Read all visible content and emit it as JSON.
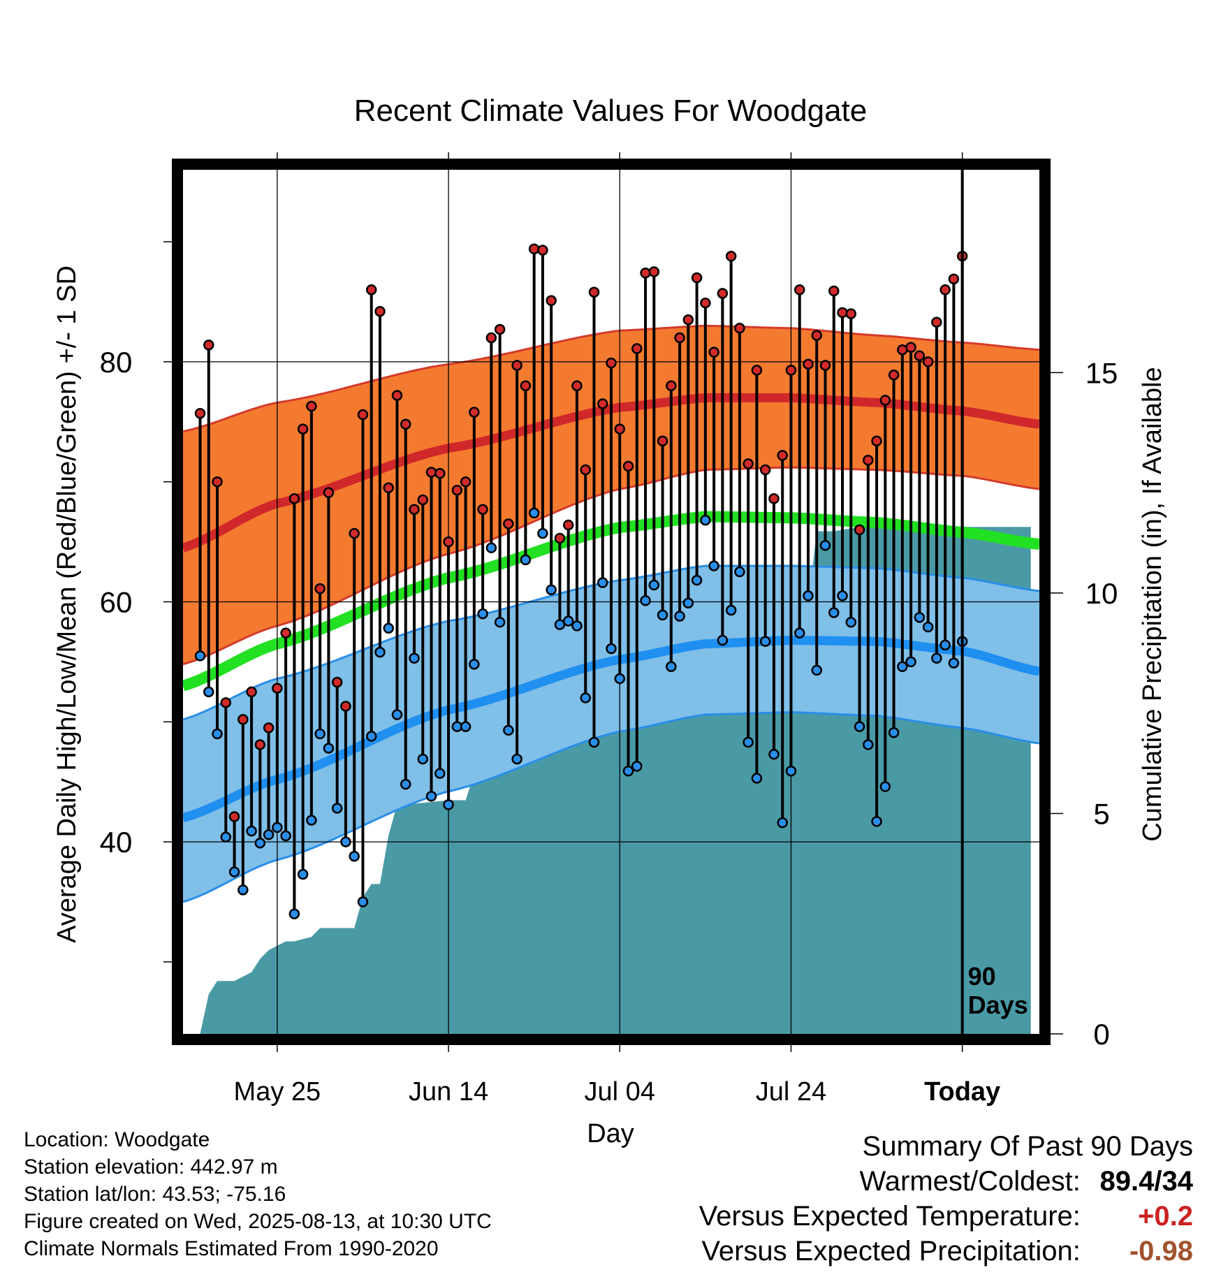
{
  "chart_data": {
    "type": "line",
    "title": "Recent Climate Values For Woodgate",
    "xlabel": "Day",
    "ylabel": "Average Daily High/Low/Mean (Red/Blue/Green) +/- 1 SD",
    "y2label": "Cumulative Precipitation (in), If Available",
    "x_ticks": [
      "May 25",
      "Jun 14",
      "Jul 04",
      "Jul 24",
      "Today"
    ],
    "x_tick_days": [
      25,
      45,
      65,
      85,
      105
    ],
    "xlim": [
      14,
      114
    ],
    "ylim": [
      24,
      96
    ],
    "y_ticks": [
      40,
      60,
      80
    ],
    "y_minor_ticks": [
      30,
      50,
      70,
      90
    ],
    "y2lim": [
      0,
      19.6
    ],
    "y2_ticks": [
      0,
      5,
      10,
      15
    ],
    "today_marker": "90\nDays",
    "grid": true,
    "colors": {
      "high_band": "#f47a30",
      "high_line": "#d0282a",
      "high_edge": "#d43a2a",
      "low_band": "#7fbfe8",
      "low_line": "#1f8ff0",
      "low_edge": "#2a8ee8",
      "mean_line": "#22e022",
      "precip": "#4a9aa5",
      "high_dot": "#d22a2a",
      "low_dot": "#2a8ee8"
    },
    "normals": {
      "days": [
        14,
        25,
        45,
        65,
        75,
        85,
        95,
        105,
        114
      ],
      "high_mean": [
        64.5,
        68.2,
        72.8,
        76.2,
        77.0,
        77.0,
        76.6,
        75.9,
        74.8
      ],
      "high_upper": [
        74.2,
        76.6,
        79.8,
        82.6,
        83.0,
        82.8,
        82.2,
        81.6,
        81.0
      ],
      "high_lower": [
        54.8,
        58.0,
        64.0,
        69.4,
        71.0,
        71.2,
        71.0,
        70.5,
        69.4
      ],
      "mean": [
        53.0,
        56.5,
        62.0,
        66.2,
        67.1,
        67.0,
        66.6,
        65.8,
        64.8
      ],
      "low_mean": [
        42.0,
        45.2,
        51.0,
        55.2,
        56.5,
        56.8,
        56.7,
        55.9,
        54.2
      ],
      "low_upper": [
        50.2,
        53.6,
        58.4,
        61.8,
        63.0,
        63.0,
        62.8,
        62.0,
        60.9
      ],
      "low_lower": [
        35.0,
        38.5,
        44.2,
        49.2,
        50.6,
        50.8,
        50.5,
        49.5,
        48.2
      ]
    },
    "series": [
      {
        "name": "High",
        "values": [
          75.7,
          81.4,
          70.0,
          51.6,
          42.1,
          50.2,
          52.5,
          48.1,
          49.5,
          52.8,
          57.4,
          68.6,
          74.4,
          76.3,
          61.1,
          69.1,
          53.3,
          51.3,
          65.7,
          75.6,
          86.0,
          84.2,
          69.5,
          77.2,
          74.8,
          67.7,
          68.5,
          70.8,
          70.7,
          65.0,
          69.3,
          70.0,
          75.8,
          67.7,
          82.0,
          82.7,
          66.5,
          79.7,
          78.0,
          89.4,
          89.3,
          85.1,
          65.3,
          66.4,
          78.0,
          71.0,
          85.8,
          76.5,
          79.9,
          74.4,
          71.3,
          81.1,
          87.4,
          87.5,
          73.4,
          78.0,
          82.0,
          83.5,
          87.0,
          84.9,
          80.8,
          85.7,
          88.8,
          82.8,
          71.5,
          79.3,
          71.0,
          68.6,
          72.2,
          79.3,
          86.0,
          79.8,
          82.2,
          79.7,
          85.9,
          84.1,
          84.0,
          66.0,
          71.8,
          73.4,
          76.8,
          78.9,
          81.0,
          81.2,
          80.5,
          80.0,
          83.3,
          86.0,
          86.9,
          88.8
        ]
      },
      {
        "name": "Low",
        "values": [
          55.5,
          52.5,
          49.0,
          40.4,
          37.5,
          36.0,
          40.9,
          39.9,
          40.6,
          41.2,
          40.5,
          34.0,
          37.3,
          41.8,
          49.0,
          47.8,
          42.8,
          40.0,
          38.8,
          35.0,
          48.8,
          55.8,
          57.8,
          50.6,
          44.8,
          55.3,
          46.9,
          43.8,
          45.7,
          43.1,
          49.6,
          49.6,
          54.8,
          59.0,
          64.5,
          58.3,
          49.3,
          46.9,
          63.5,
          67.4,
          65.7,
          61.0,
          58.1,
          58.4,
          58.0,
          52.0,
          48.3,
          61.6,
          56.1,
          53.6,
          45.9,
          46.3,
          60.1,
          61.4,
          58.9,
          54.6,
          58.8,
          59.9,
          61.8,
          66.8,
          63.0,
          56.8,
          59.3,
          62.5,
          48.3,
          45.3,
          56.7,
          47.3,
          41.6,
          45.9,
          57.4,
          60.5,
          54.3,
          64.7,
          59.1,
          60.5,
          58.3,
          49.6,
          48.1,
          41.7,
          44.6,
          49.1,
          54.6,
          55.0,
          58.7,
          57.9,
          55.3,
          56.4,
          54.9,
          56.7
        ]
      },
      {
        "name": "Cumulative Precipitation",
        "x": [
          15,
          16,
          17,
          18,
          20,
          21,
          22,
          23,
          24,
          25,
          26,
          27,
          28,
          29,
          30,
          31,
          32,
          34,
          35,
          36,
          37,
          38,
          39,
          40,
          45,
          47,
          48,
          49,
          51,
          52,
          53,
          56,
          57,
          59,
          60,
          61,
          62,
          63,
          64,
          65,
          71,
          72,
          73,
          74,
          76,
          77,
          78,
          79,
          80,
          81,
          82,
          83,
          84,
          85,
          86,
          87,
          88,
          89,
          90,
          93,
          113
        ],
        "values": [
          0.0,
          0.0,
          0.9,
          1.2,
          1.2,
          1.3,
          1.4,
          1.7,
          1.9,
          2.0,
          2.1,
          2.1,
          2.15,
          2.2,
          2.4,
          2.4,
          2.4,
          2.4,
          3.1,
          3.4,
          3.4,
          4.5,
          5.2,
          5.2,
          5.3,
          5.3,
          5.9,
          5.9,
          6.9,
          6.9,
          7.0,
          7.1,
          7.2,
          8.3,
          8.5,
          8.6,
          8.6,
          8.6,
          8.6,
          8.7,
          8.7,
          9.1,
          9.3,
          9.3,
          9.4,
          9.6,
          9.6,
          9.7,
          9.7,
          9.7,
          9.7,
          9.7,
          9.7,
          9.7,
          9.7,
          9.7,
          11.4,
          11.4,
          11.4,
          11.5,
          11.5
        ]
      }
    ]
  },
  "footer": {
    "location": "Location: Woodgate",
    "elevation": "Station elevation: 442.97 m",
    "latlon": "Station lat/lon: 43.53; -75.16",
    "created": "Figure created on Wed, 2025-08-13, at 10:30 UTC",
    "normals": "Climate Normals Estimated From 1990-2020"
  },
  "summary": {
    "title": "Summary Of Past 90 Days",
    "warmest_coldest_label": "Warmest/Coldest:",
    "warmest_coldest_value": "89.4/34",
    "temp_label": "Versus Expected Temperature:",
    "temp_value": "+0.2",
    "temp_color": "#cc2222",
    "precip_label": "Versus Expected Precipitation:",
    "precip_value": "-0.98",
    "precip_color": "#a0522d"
  }
}
